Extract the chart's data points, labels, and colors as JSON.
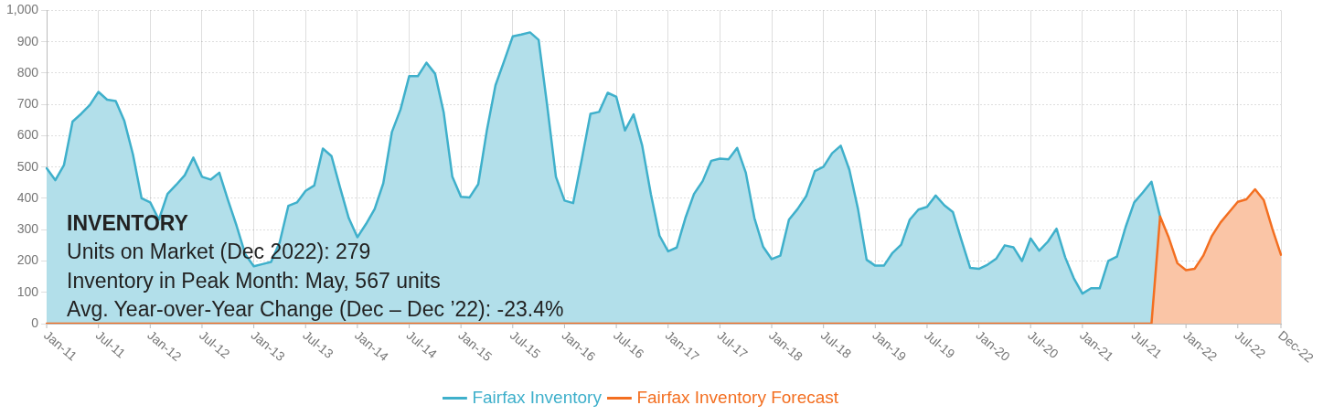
{
  "chart_data": {
    "type": "area",
    "categories": [
      "Jan-11",
      null,
      null,
      null,
      null,
      null,
      "Jul-11",
      null,
      null,
      null,
      null,
      null,
      "Jan-12",
      null,
      null,
      null,
      null,
      null,
      "Jul-12",
      null,
      null,
      null,
      null,
      null,
      "Jan-13",
      null,
      null,
      null,
      null,
      null,
      "Jul-13",
      null,
      null,
      null,
      null,
      null,
      "Jan-14",
      null,
      null,
      null,
      null,
      null,
      "Jul-14",
      null,
      null,
      null,
      null,
      null,
      "Jan-15",
      null,
      null,
      null,
      null,
      null,
      "Jul-15",
      null,
      null,
      null,
      null,
      null,
      "Jan-16",
      null,
      null,
      null,
      null,
      null,
      "Jul-16",
      null,
      null,
      null,
      null,
      null,
      "Jan-17",
      null,
      null,
      null,
      null,
      null,
      "Jul-17",
      null,
      null,
      null,
      null,
      null,
      "Jan-18",
      null,
      null,
      null,
      null,
      null,
      "Jul-18",
      null,
      null,
      null,
      null,
      null,
      "Jan-19",
      null,
      null,
      null,
      null,
      null,
      "Jul-19",
      null,
      null,
      null,
      null,
      null,
      "Jan-20",
      null,
      null,
      null,
      null,
      null,
      "Jul-20",
      null,
      null,
      null,
      null,
      null,
      "Jan-21",
      null,
      null,
      null,
      null,
      null,
      "Jul-21",
      null,
      null,
      null,
      null,
      null,
      "Jan-22",
      null,
      null,
      null,
      null,
      null,
      "Jul-22",
      null,
      null,
      null,
      null,
      "Dec-22"
    ],
    "series": [
      {
        "name": "Fairfax Inventory",
        "color": "#3fb0cb",
        "values": [
          496,
          458,
          506,
          645,
          670,
          698,
          740,
          715,
          711,
          647,
          540,
          400,
          387,
          332,
          414,
          443,
          474,
          530,
          469,
          460,
          482,
          395,
          313,
          222,
          183,
          190,
          197,
          260,
          376,
          387,
          424,
          441,
          559,
          535,
          434,
          337,
          276,
          318,
          366,
          448,
          612,
          684,
          790,
          790,
          833,
          798,
          674,
          469,
          405,
          403,
          445,
          617,
          761,
          838,
          917,
          923,
          930,
          906,
          694,
          469,
          393,
          385,
          525,
          670,
          676,
          737,
          724,
          617,
          668,
          568,
          414,
          281,
          231,
          243,
          337,
          414,
          455,
          520,
          527,
          525,
          561,
          482,
          337,
          246,
          206,
          217,
          332,
          366,
          407,
          487,
          501,
          544,
          568,
          491,
          366,
          204,
          185,
          185,
          226,
          252,
          332,
          364,
          373,
          409,
          378,
          356,
          265,
          178,
          175,
          188,
          207,
          250,
          244,
          200,
          272,
          233,
          262,
          303,
          212,
          145,
          96,
          113,
          113,
          200,
          214,
          308,
          387,
          419,
          453,
          342,
          null,
          null,
          null,
          null,
          null,
          null,
          null,
          null,
          null,
          null,
          null,
          null,
          null,
          null
        ]
      },
      {
        "name": "Fairfax Inventory Forecast",
        "color": "#f36f21",
        "values": [
          0,
          0,
          0,
          0,
          0,
          0,
          0,
          0,
          0,
          0,
          0,
          0,
          0,
          0,
          0,
          0,
          0,
          0,
          0,
          0,
          0,
          0,
          0,
          0,
          0,
          0,
          0,
          0,
          0,
          0,
          0,
          0,
          0,
          0,
          0,
          0,
          0,
          0,
          0,
          0,
          0,
          0,
          0,
          0,
          0,
          0,
          0,
          0,
          0,
          0,
          0,
          0,
          0,
          0,
          0,
          0,
          0,
          0,
          0,
          0,
          0,
          0,
          0,
          0,
          0,
          0,
          0,
          0,
          0,
          0,
          0,
          0,
          0,
          0,
          0,
          0,
          0,
          0,
          0,
          0,
          0,
          0,
          0,
          0,
          0,
          0,
          0,
          0,
          0,
          0,
          0,
          0,
          0,
          0,
          0,
          0,
          0,
          0,
          0,
          0,
          0,
          0,
          0,
          0,
          0,
          0,
          0,
          0,
          0,
          0,
          0,
          0,
          0,
          0,
          0,
          0,
          0,
          0,
          0,
          0,
          0,
          0,
          0,
          0,
          0,
          0,
          0,
          0,
          0,
          342,
          275,
          193,
          171,
          175,
          217,
          280,
          323,
          356,
          389,
          397,
          429,
          395,
          303,
          220
        ]
      }
    ],
    "ylim": [
      0,
      1000
    ],
    "yticks": [
      0,
      100,
      200,
      300,
      400,
      500,
      600,
      700,
      800,
      900,
      {
        "value": 1000,
        "label": "1,000"
      }
    ],
    "grid": true,
    "legend": "bottom",
    "marker": "none",
    "line_style": "solid",
    "annotations": [
      "INVENTORY",
      "Units on Market (Dec 2022): 279",
      "Inventory in Peak Month: May, 567 units",
      "Avg. Year-over-Year Change (Dec – Dec ’22): -23.4%"
    ]
  }
}
